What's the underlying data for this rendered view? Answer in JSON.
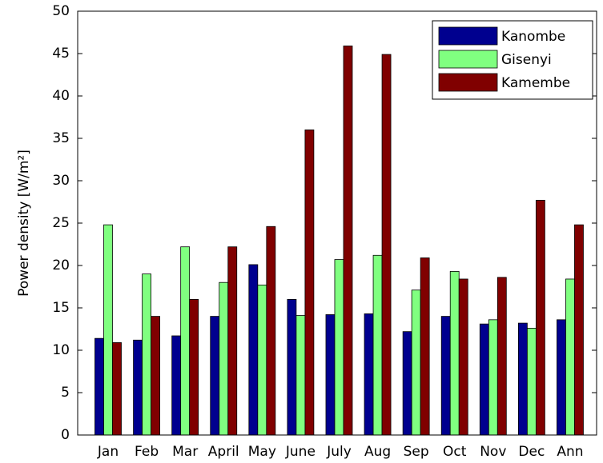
{
  "chart_data": {
    "type": "bar",
    "y_label": "Power density [W/m²]",
    "categories": [
      "Jan",
      "Feb",
      "Mar",
      "April",
      "May",
      "June",
      "July",
      "Aug",
      "Sep",
      "Oct",
      "Nov",
      "Dec",
      "Ann"
    ],
    "series": [
      {
        "name": "Kanombe",
        "color": "#00008f",
        "values": [
          11.4,
          11.2,
          11.7,
          14.0,
          20.1,
          16.0,
          14.2,
          14.3,
          12.2,
          14.0,
          13.1,
          13.2,
          13.6
        ]
      },
      {
        "name": "Gisenyi",
        "color": "#80ff80",
        "values": [
          24.8,
          19.0,
          22.2,
          18.0,
          17.7,
          14.1,
          20.7,
          21.2,
          17.1,
          19.3,
          13.6,
          12.6,
          18.4
        ]
      },
      {
        "name": "Kamembe",
        "color": "#800000",
        "values": [
          10.9,
          14.0,
          16.0,
          22.2,
          24.6,
          36.0,
          45.9,
          44.9,
          20.9,
          18.4,
          18.6,
          27.7,
          24.8
        ]
      }
    ],
    "ylim": [
      0,
      50
    ],
    "yticks": [
      0,
      5,
      10,
      15,
      20,
      25,
      30,
      35,
      40,
      45,
      50
    ],
    "legend": "top-right",
    "grid": false
  }
}
